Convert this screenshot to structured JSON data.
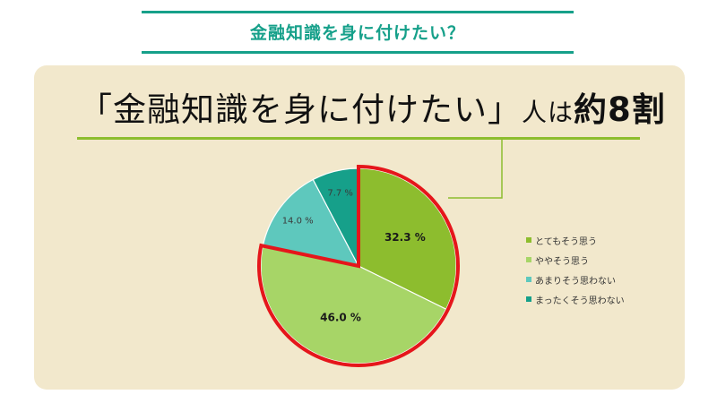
{
  "header": {
    "title": "金融知識を身に付けたい？"
  },
  "headline": {
    "quoted": "「金融知識を身に付けたい」",
    "mid": "人は",
    "emphasis": "約8割"
  },
  "colors": {
    "accent_teal": "#16a08a",
    "panel_bg": "#f2e8cc",
    "underline_green": "#8dbd2e",
    "highlight_red": "#e5161b"
  },
  "chart_data": {
    "type": "pie",
    "title": "",
    "series": [
      {
        "name": "とてもそう思う",
        "value": 32.3,
        "label": "32.3 %",
        "color": "#8dbd2e",
        "highlight": true
      },
      {
        "name": "ややそう思う",
        "value": 46.0,
        "label": "46.0 %",
        "color": "#a7d567",
        "highlight": true
      },
      {
        "name": "あまりそう思わない",
        "value": 14.0,
        "label": "14.0 %",
        "color": "#5ec8bd",
        "highlight": false
      },
      {
        "name": "まったくそう思わない",
        "value": 7.7,
        "label": "7.7 %",
        "color": "#16a08a",
        "highlight": false
      }
    ],
    "legend_position": "right",
    "start_angle": "12 o'clock",
    "direction": "clockwise"
  }
}
